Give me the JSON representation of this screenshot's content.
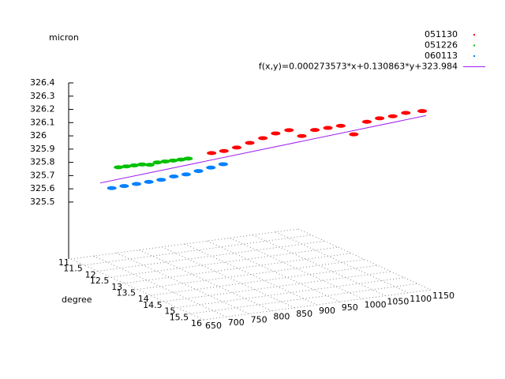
{
  "chart_data": {
    "type": "scatter3d",
    "z_label": "micron",
    "y_label": "degree",
    "xlim": [
      650,
      1150
    ],
    "ylim": [
      11,
      16
    ],
    "zlim": [
      325.07,
      326.4
    ],
    "xticks": [
      650,
      700,
      750,
      800,
      850,
      900,
      950,
      1000,
      1050,
      1100,
      1150
    ],
    "yticks": [
      11,
      11.5,
      12,
      12.5,
      13,
      13.5,
      14,
      14.5,
      15,
      15.5,
      16
    ],
    "zticks": [
      325.5,
      325.6,
      325.7,
      325.8,
      325.9,
      326,
      326.1,
      326.2,
      326.3,
      326.4
    ],
    "grid": true,
    "legend": "top-right",
    "series": [
      {
        "name": "051130",
        "color": "#ff0000",
        "style": "points",
        "x": [
          821,
          840,
          860,
          880,
          900,
          920,
          940,
          960,
          980,
          1000,
          1020,
          1040,
          1060,
          1080,
          1100,
          1120,
          1145
        ],
        "y": [
          13.37,
          13.51,
          13.65,
          13.8,
          13.95,
          14.09,
          14.25,
          14.39,
          14.54,
          14.69,
          14.83,
          14.98,
          15.13,
          15.27,
          15.42,
          15.57,
          15.76
        ],
        "z": [
          326.01,
          326.03,
          326.06,
          326.1,
          326.14,
          326.18,
          326.21,
          326.17,
          326.22,
          326.24,
          326.26,
          326.2,
          326.3,
          326.33,
          326.35,
          326.38,
          326.4
        ]
      },
      {
        "name": "051226",
        "color": "#00c000",
        "style": "points",
        "x": [
          678,
          690,
          702,
          714,
          726,
          738,
          750,
          762,
          774,
          785
        ],
        "y": [
          12.31,
          12.4,
          12.49,
          12.58,
          12.67,
          12.75,
          12.84,
          12.93,
          13.02,
          13.1
        ],
        "z": [
          325.87,
          325.88,
          325.89,
          325.9,
          325.9,
          325.92,
          325.93,
          325.94,
          325.95,
          325.96
        ]
      },
      {
        "name": "060113",
        "color": "#0080ff",
        "style": "points",
        "x": [
          668,
          687,
          706,
          725,
          744,
          763,
          782,
          801,
          820,
          839
        ],
        "y": [
          12.23,
          12.37,
          12.51,
          12.65,
          12.79,
          12.94,
          13.08,
          13.22,
          13.36,
          13.5
        ],
        "z": [
          325.71,
          325.73,
          325.75,
          325.77,
          325.79,
          325.82,
          325.84,
          325.87,
          325.9,
          325.93
        ]
      },
      {
        "name": "f(x,y)=0.000273573*x+0.130863*y+323.984",
        "color": "#a020f0",
        "style": "line",
        "x": [
          650,
          1150
        ],
        "y": [
          12.1,
          15.82
        ],
        "z": [
          325.745,
          326.369
        ]
      }
    ]
  }
}
